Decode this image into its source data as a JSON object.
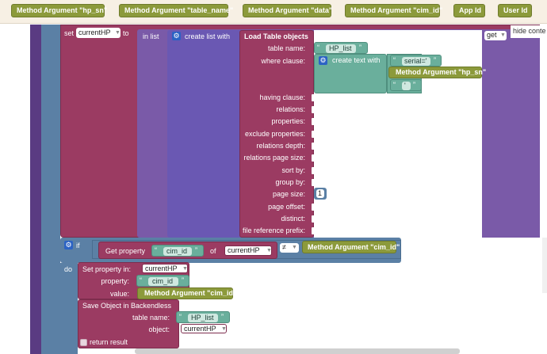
{
  "toolbar": {
    "items": [
      "Method Argument \"hp_sn\"",
      "Method Argument \"table_name\"",
      "Method Argument \"data\"",
      "Method Argument \"cim_id\"",
      "App Id",
      "User Id"
    ]
  },
  "hide_context": "hide conte",
  "set_block": {
    "set_label": "set",
    "variable": "currentHP",
    "to_label": "to",
    "in_list_label": "in list",
    "create_list_label": "create list with",
    "get_label": "get"
  },
  "load_table": {
    "title": "Load Table objects",
    "labels": [
      "table name:",
      "where clause:",
      "having clause:",
      "relations:",
      "properties:",
      "exclude properties:",
      "relations depth:",
      "relations page size:",
      "sort by:",
      "group by:",
      "page size:",
      "page offset:",
      "distinct:",
      "file reference prefix:"
    ],
    "table_value": "HP_list",
    "create_text_label": "create text with",
    "serial_text": "serial='",
    "method_arg_hp_sn": "Method Argument \"hp_sn\"",
    "quote_text": "'",
    "page_size_value": "1"
  },
  "if_block": {
    "if_label": "if",
    "get_property_label": "Get property",
    "property_value": "cim_id",
    "of_label": "of",
    "variable": "currentHP",
    "operator": "≠",
    "method_arg_cim_id": "Method Argument \"cim_id\""
  },
  "do_block": {
    "do_label": "do",
    "set_property_title": "Set property in:",
    "set_property_target": "currentHP",
    "property_label": "property:",
    "property_value": "cim_id",
    "value_label": "value:",
    "value_arg": "Method Argument \"cim_id\"",
    "save_title": "Save Object in Backendless",
    "table_name_label": "table name:",
    "table_value": "HP_list",
    "object_label": "object:",
    "object_value": "currentHP",
    "return_result_label": "return result"
  },
  "colors": {
    "olive": "#8c9a3b",
    "teal": "#6aaf9c",
    "maroon": "#9b3b62",
    "purple": "#7a5aa8",
    "slate": "#5b80a5",
    "canvas_left": "#5a3b82"
  }
}
